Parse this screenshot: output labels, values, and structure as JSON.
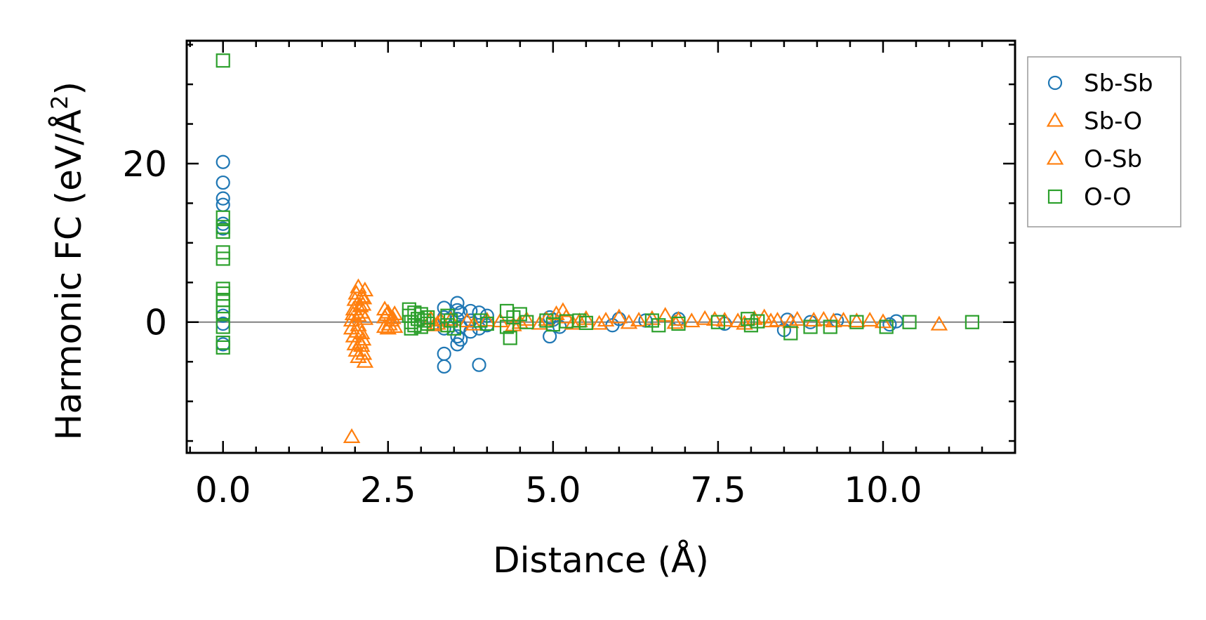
{
  "chart_data": {
    "type": "scatter",
    "title": "",
    "xlabel": "Distance (Å)",
    "ylabel": "Harmonic FC (eV/Å",
    "ylabel_sup": "2",
    "ylabel_close": ")",
    "xlim": [
      -0.55,
      12.0
    ],
    "ylim": [
      -16.5,
      35.5
    ],
    "xticks": [
      0.0,
      2.5,
      5.0,
      7.5,
      10.0
    ],
    "xtick_labels": [
      "0.0",
      "2.5",
      "5.0",
      "7.5",
      "10.0"
    ],
    "yticks": [
      0,
      20
    ],
    "ytick_labels": [
      "0",
      "20"
    ],
    "x_minor_step": 0.5,
    "y_minor_step": 5,
    "zero_line": true,
    "legend_position": "outside-right-top",
    "series": [
      {
        "name": "Sb-Sb",
        "marker": "circle",
        "color": "#1f77b4",
        "points": [
          [
            0.0,
            20.2
          ],
          [
            0.0,
            17.6
          ],
          [
            0.0,
            15.6
          ],
          [
            0.0,
            14.8
          ],
          [
            0.0,
            12.4
          ],
          [
            0.0,
            11.8
          ],
          [
            0.0,
            0.8
          ],
          [
            0.0,
            -0.2
          ],
          [
            0.0,
            -2.8
          ],
          [
            3.35,
            1.8
          ],
          [
            3.35,
            0.6
          ],
          [
            3.35,
            -0.8
          ],
          [
            3.35,
            -4.0
          ],
          [
            3.35,
            -5.6
          ],
          [
            3.55,
            2.4
          ],
          [
            3.55,
            1.5
          ],
          [
            3.55,
            0.4
          ],
          [
            3.55,
            -1.8
          ],
          [
            3.55,
            -2.8
          ],
          [
            3.6,
            1.2
          ],
          [
            3.6,
            -0.6
          ],
          [
            3.6,
            -2.2
          ],
          [
            3.75,
            1.4
          ],
          [
            3.75,
            0.2
          ],
          [
            3.75,
            -1.2
          ],
          [
            3.88,
            1.2
          ],
          [
            3.88,
            -0.8
          ],
          [
            3.88,
            -5.4
          ],
          [
            4.0,
            0.8
          ],
          [
            4.0,
            -0.4
          ],
          [
            4.95,
            0.6
          ],
          [
            4.95,
            -1.8
          ],
          [
            5.0,
            0.3
          ],
          [
            5.1,
            -0.6
          ],
          [
            5.9,
            -0.4
          ],
          [
            6.0,
            0.4
          ],
          [
            6.4,
            0.2
          ],
          [
            6.9,
            0.4
          ],
          [
            7.6,
            -0.2
          ],
          [
            8.5,
            -1.0
          ],
          [
            8.55,
            0.3
          ],
          [
            8.9,
            0.0
          ],
          [
            9.3,
            0.2
          ],
          [
            10.1,
            -0.3
          ],
          [
            10.2,
            0.1
          ]
        ]
      },
      {
        "name": "Sb-O",
        "marker": "triangle",
        "color": "#ff7f0e",
        "points": [
          [
            1.95,
            -14.5
          ],
          [
            1.95,
            0.2
          ],
          [
            1.95,
            -0.8
          ],
          [
            1.98,
            1.6
          ],
          [
            1.98,
            -1.8
          ],
          [
            2.0,
            2.8
          ],
          [
            2.0,
            -2.8
          ],
          [
            2.02,
            3.6
          ],
          [
            2.02,
            -3.6
          ],
          [
            2.05,
            4.4
          ],
          [
            2.05,
            -4.4
          ],
          [
            2.05,
            0.8
          ],
          [
            2.05,
            -0.4
          ],
          [
            2.1,
            3.2
          ],
          [
            2.1,
            -3.0
          ],
          [
            2.1,
            1.2
          ],
          [
            2.1,
            -1.4
          ],
          [
            2.12,
            2.2
          ],
          [
            2.12,
            -2.2
          ],
          [
            2.15,
            0.4
          ],
          [
            2.15,
            -5.0
          ],
          [
            2.15,
            4.0
          ],
          [
            2.45,
            1.6
          ],
          [
            2.45,
            0.6
          ],
          [
            2.45,
            -0.6
          ],
          [
            2.5,
            1.2
          ],
          [
            2.5,
            -0.8
          ],
          [
            2.55,
            0.2
          ],
          [
            2.6,
            1.0
          ],
          [
            2.6,
            -0.6
          ],
          [
            3.15,
            0.4
          ],
          [
            3.2,
            -0.4
          ],
          [
            3.3,
            0.2
          ],
          [
            3.8,
            -0.3
          ],
          [
            4.0,
            0.2
          ],
          [
            4.4,
            -0.4
          ],
          [
            4.6,
            0.3
          ],
          [
            4.8,
            -0.2
          ],
          [
            5.15,
            1.4
          ],
          [
            5.2,
            0.6
          ],
          [
            5.3,
            -0.2
          ],
          [
            5.5,
            0.4
          ],
          [
            5.7,
            -0.2
          ],
          [
            6.0,
            0.6
          ],
          [
            6.3,
            0.2
          ],
          [
            6.7,
            0.8
          ],
          [
            6.9,
            0.3
          ],
          [
            7.3,
            0.4
          ],
          [
            7.6,
            0.2
          ],
          [
            7.9,
            -0.2
          ],
          [
            8.2,
            0.6
          ],
          [
            8.4,
            0.2
          ],
          [
            8.7,
            0.3
          ],
          [
            9.1,
            0.3
          ],
          [
            9.4,
            0.2
          ],
          [
            9.8,
            0.2
          ],
          [
            10.85,
            -0.3
          ]
        ]
      },
      {
        "name": "O-Sb",
        "marker": "triangle",
        "color": "#ff7f0e",
        "points": [
          [
            1.97,
            1.0
          ],
          [
            2.03,
            -1.2
          ],
          [
            2.08,
            2.0
          ],
          [
            2.08,
            -2.6
          ],
          [
            2.13,
            3.0
          ],
          [
            2.13,
            -4.0
          ],
          [
            2.48,
            0.9
          ],
          [
            2.52,
            -0.3
          ],
          [
            2.57,
            0.5
          ],
          [
            3.25,
            -0.2
          ],
          [
            3.45,
            0.3
          ],
          [
            3.7,
            0.1
          ],
          [
            4.2,
            0.1
          ],
          [
            4.5,
            -0.1
          ],
          [
            4.9,
            0.3
          ],
          [
            5.05,
            1.0
          ],
          [
            5.4,
            0.1
          ],
          [
            5.8,
            0.2
          ],
          [
            6.15,
            -0.1
          ],
          [
            6.5,
            0.4
          ],
          [
            6.85,
            -0.1
          ],
          [
            7.1,
            0.1
          ],
          [
            7.45,
            0.3
          ],
          [
            7.8,
            0.1
          ],
          [
            8.05,
            0.4
          ],
          [
            8.3,
            0.1
          ],
          [
            8.6,
            0.0
          ],
          [
            8.95,
            0.2
          ],
          [
            9.25,
            0.1
          ],
          [
            9.6,
            0.1
          ],
          [
            10.0,
            0.0
          ]
        ]
      },
      {
        "name": "O-O",
        "marker": "square",
        "color": "#2ca02c",
        "points": [
          [
            0.0,
            33.0
          ],
          [
            0.0,
            13.2
          ],
          [
            0.0,
            12.0
          ],
          [
            0.0,
            11.4
          ],
          [
            0.0,
            8.8
          ],
          [
            0.0,
            8.0
          ],
          [
            0.0,
            4.2
          ],
          [
            0.0,
            3.6
          ],
          [
            0.0,
            2.8
          ],
          [
            0.0,
            2.0
          ],
          [
            0.0,
            1.2
          ],
          [
            0.0,
            -0.6
          ],
          [
            0.0,
            -2.6
          ],
          [
            0.0,
            -3.2
          ],
          [
            2.82,
            1.6
          ],
          [
            2.82,
            0.8
          ],
          [
            2.85,
            0.0
          ],
          [
            2.85,
            -0.8
          ],
          [
            2.9,
            1.2
          ],
          [
            2.9,
            -0.4
          ],
          [
            2.95,
            0.4
          ],
          [
            3.0,
            1.0
          ],
          [
            3.0,
            -0.6
          ],
          [
            3.05,
            0.2
          ],
          [
            3.1,
            0.6
          ],
          [
            3.1,
            -0.2
          ],
          [
            3.4,
            0.8
          ],
          [
            3.4,
            -0.4
          ],
          [
            3.45,
            0.2
          ],
          [
            3.5,
            -0.8
          ],
          [
            3.9,
            0.2
          ],
          [
            4.0,
            -0.2
          ],
          [
            4.3,
            1.4
          ],
          [
            4.3,
            -0.6
          ],
          [
            4.35,
            -2.0
          ],
          [
            4.4,
            0.6
          ],
          [
            4.5,
            1.0
          ],
          [
            4.6,
            0.0
          ],
          [
            4.9,
            0.2
          ],
          [
            5.0,
            -0.3
          ],
          [
            5.2,
            0.1
          ],
          [
            5.4,
            0.2
          ],
          [
            5.5,
            -0.1
          ],
          [
            6.5,
            0.2
          ],
          [
            6.6,
            -0.4
          ],
          [
            6.9,
            -0.2
          ],
          [
            7.5,
            0.0
          ],
          [
            7.95,
            0.4
          ],
          [
            8.0,
            -0.4
          ],
          [
            8.1,
            0.1
          ],
          [
            8.6,
            -1.4
          ],
          [
            8.9,
            -0.6
          ],
          [
            9.2,
            -0.6
          ],
          [
            9.6,
            0.0
          ],
          [
            10.05,
            -0.6
          ],
          [
            10.4,
            0.0
          ],
          [
            11.35,
            0.0
          ]
        ]
      }
    ]
  }
}
